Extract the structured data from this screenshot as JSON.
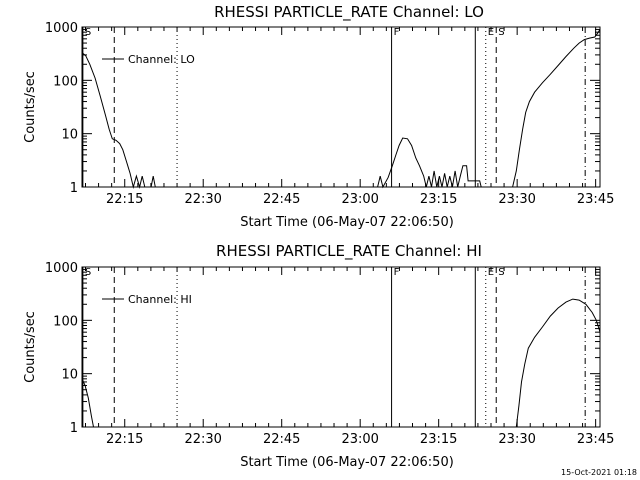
{
  "footer": {
    "date_stamp": "15-Oct-2021 01:18"
  },
  "chart_data": [
    {
      "type": "line",
      "title": "RHESSI PARTICLE_RATE Channel: LO",
      "xlabel": "Start Time (06-May-07 22:06:50)",
      "ylabel": "Counts/sec",
      "yscale": "log",
      "ylim": [
        1,
        1000
      ],
      "xlim_minutes_after_22_06_50": [
        0,
        99
      ],
      "x_ticks": [
        "22:15",
        "22:30",
        "22:45",
        "23:00",
        "23:15",
        "23:30",
        "23:45"
      ],
      "y_ticks": [
        "1",
        "10",
        "100",
        "1000"
      ],
      "legend": {
        "label": "Channel: LO",
        "position": "top-left"
      },
      "markers": [
        {
          "label": "S",
          "time": "22:07",
          "style": "solid"
        },
        {
          "label": "",
          "time": "22:13",
          "style": "dashed"
        },
        {
          "label": "",
          "time": "22:25",
          "style": "dotted"
        },
        {
          "label": "F",
          "time": "23:06",
          "style": "solid"
        },
        {
          "label": "",
          "time": "23:22",
          "style": "solid"
        },
        {
          "label": "E",
          "time": "23:24",
          "style": "dotted"
        },
        {
          "label": "S",
          "time": "23:26",
          "style": "dashed"
        },
        {
          "label": "",
          "time": "23:43",
          "style": "dashdot"
        }
      ],
      "series": [
        {
          "segments": [
            [
              [
                0,
                330
              ],
              [
                0.7,
                290
              ],
              [
                1.5,
                200
              ],
              [
                2.5,
                110
              ],
              [
                3.5,
                50
              ],
              [
                4.5,
                22
              ],
              [
                5.2,
                12
              ],
              [
                5.8,
                8
              ],
              [
                6.5,
                7.5
              ],
              [
                7.2,
                6.5
              ],
              [
                7.8,
                5
              ],
              [
                8.5,
                3
              ],
              [
                9.2,
                1.8
              ],
              [
                9.8,
                1
              ],
              [
                10.4,
                1.6
              ],
              [
                11,
                1
              ],
              [
                11.5,
                1.6
              ],
              [
                12,
                1
              ],
              [
                13.2,
                1
              ],
              [
                13.6,
                1.6
              ],
              [
                14,
                1
              ]
            ],
            [
              [
                56.5,
                1
              ],
              [
                57,
                1.6
              ],
              [
                57.5,
                1
              ],
              [
                58.5,
                1.5
              ],
              [
                59.3,
                2.5
              ],
              [
                60,
                4
              ],
              [
                60.6,
                6
              ],
              [
                61.3,
                8.3
              ],
              [
                62.2,
                8
              ],
              [
                63,
                6
              ],
              [
                63.8,
                3.5
              ],
              [
                64.5,
                2.5
              ],
              [
                65.3,
                1.6
              ],
              [
                65.8,
                1
              ],
              [
                66.3,
                1.6
              ],
              [
                66.8,
                1
              ],
              [
                67.3,
                2
              ],
              [
                67.8,
                1
              ],
              [
                68.3,
                1.6
              ],
              [
                68.8,
                1
              ],
              [
                69.3,
                1.8
              ],
              [
                69.8,
                1
              ],
              [
                70.3,
                1.6
              ],
              [
                70.8,
                1
              ],
              [
                71.3,
                2
              ],
              [
                71.8,
                1
              ],
              [
                72.3,
                1.6
              ],
              [
                72.8,
                2.5
              ],
              [
                73.5,
                2.5
              ],
              [
                73.8,
                1.3
              ],
              [
                76,
                1.3
              ],
              [
                76.3,
                1
              ]
            ],
            [
              [
                82.3,
                1
              ],
              [
                83,
                2
              ],
              [
                83.6,
                5
              ],
              [
                84.2,
                12
              ],
              [
                84.8,
                25
              ],
              [
                85.5,
                40
              ],
              [
                86.5,
                60
              ],
              [
                88,
                90
              ],
              [
                89.5,
                130
              ],
              [
                91,
                190
              ],
              [
                92.5,
                280
              ],
              [
                94,
                400
              ],
              [
                95,
                500
              ],
              [
                96,
                580
              ],
              [
                97,
                620
              ],
              [
                98,
                650
              ],
              [
                98.6,
                780
              ],
              [
                99,
                900
              ]
            ]
          ]
        }
      ]
    },
    {
      "type": "line",
      "title": "RHESSI PARTICLE_RATE Channel: HI",
      "xlabel": "Start Time (06-May-07 22:06:50)",
      "ylabel": "Counts/sec",
      "yscale": "log",
      "ylim": [
        1,
        1000
      ],
      "xlim_minutes_after_22_06_50": [
        0,
        99
      ],
      "x_ticks": [
        "22:15",
        "22:30",
        "22:45",
        "23:00",
        "23:15",
        "23:30",
        "23:45"
      ],
      "y_ticks": [
        "1",
        "10",
        "100",
        "1000"
      ],
      "legend": {
        "label": "Channel: HI",
        "position": "top-left"
      },
      "markers": [
        {
          "label": "S",
          "time": "22:07",
          "style": "solid"
        },
        {
          "label": "",
          "time": "22:13",
          "style": "dashed"
        },
        {
          "label": "",
          "time": "22:25",
          "style": "dotted"
        },
        {
          "label": "F",
          "time": "23:06",
          "style": "solid"
        },
        {
          "label": "",
          "time": "23:22",
          "style": "solid"
        },
        {
          "label": "E",
          "time": "23:24",
          "style": "dotted"
        },
        {
          "label": "S",
          "time": "23:26",
          "style": "dashed"
        },
        {
          "label": "",
          "time": "23:43",
          "style": "dashdot"
        }
      ],
      "series": [
        {
          "segments": [
            [
              [
                0,
                8
              ],
              [
                0.6,
                6
              ],
              [
                1.2,
                3.5
              ],
              [
                1.8,
                1.6
              ],
              [
                2.2,
                1
              ]
            ],
            [
              [
                83,
                1
              ],
              [
                83.5,
                2.5
              ],
              [
                84,
                7
              ],
              [
                84.6,
                15
              ],
              [
                85.3,
                30
              ],
              [
                86.5,
                48
              ],
              [
                88,
                75
              ],
              [
                89.5,
                120
              ],
              [
                91,
                170
              ],
              [
                92.5,
                220
              ],
              [
                93.8,
                250
              ],
              [
                95,
                240
              ],
              [
                96.3,
                200
              ],
              [
                97.5,
                140
              ],
              [
                98.3,
                100
              ],
              [
                98.8,
                70
              ],
              [
                99,
                60
              ]
            ]
          ]
        }
      ]
    }
  ]
}
